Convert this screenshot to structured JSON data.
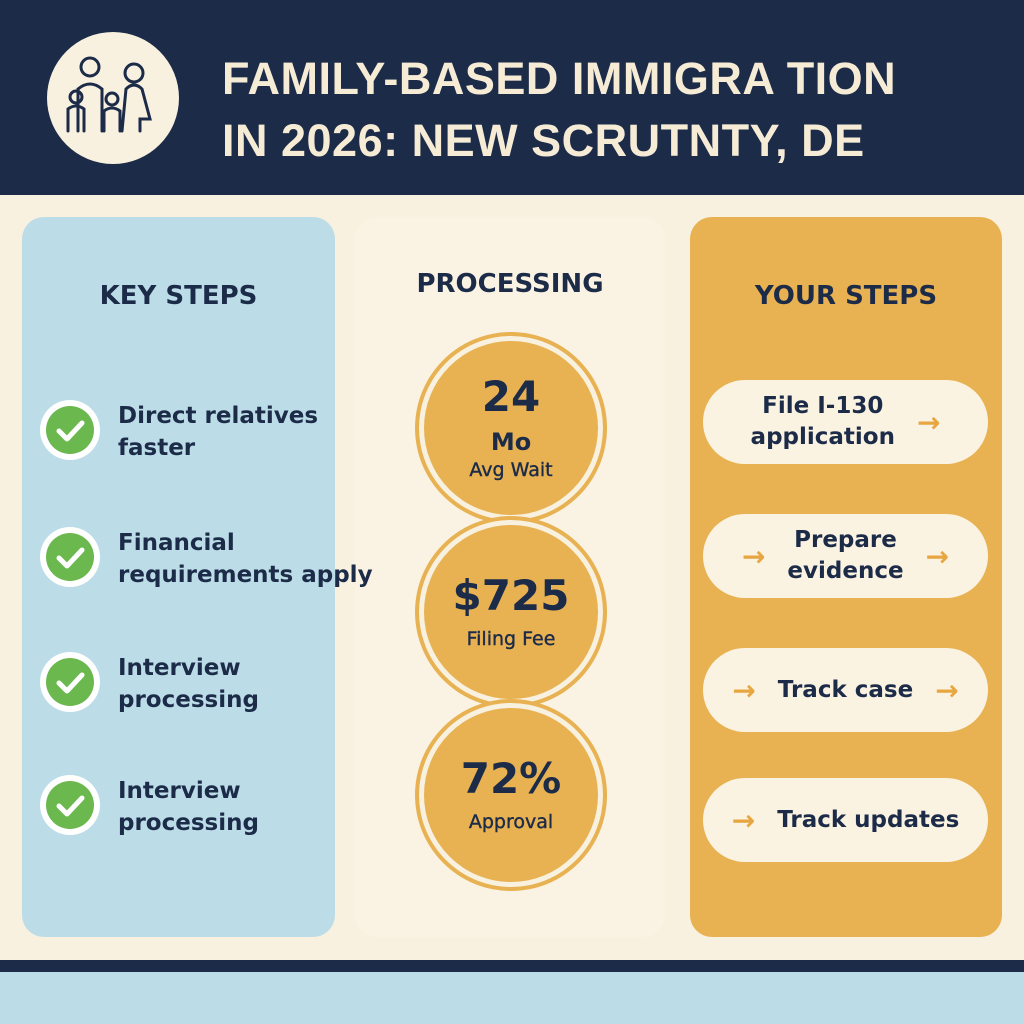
{
  "header": {
    "title_lines": [
      "FAMILY-BASED IMMIGRA TION",
      "IN 2026: NEW SCRUTNTY, DE"
    ]
  },
  "key_steps": {
    "heading": "KEY STEPS",
    "items": [
      {
        "lines": [
          "Direct relatives",
          "faster"
        ]
      },
      {
        "lines": [
          "Financial",
          "requirements apply"
        ]
      },
      {
        "lines": [
          "Interview",
          "processing"
        ]
      },
      {
        "lines": [
          "Interview",
          "processing"
        ]
      }
    ]
  },
  "processing": {
    "heading": "PROCESSING",
    "stats": [
      {
        "lines": [
          "24",
          "Mo",
          "Avg Wait"
        ]
      },
      {
        "lines": [
          "$725",
          "Filing Fee"
        ]
      },
      {
        "lines": [
          "72%",
          "Approval"
        ]
      }
    ]
  },
  "your_steps": {
    "heading": "YOUR STEPS",
    "items": [
      {
        "lines": [
          "File I-130",
          "application"
        ]
      },
      {
        "lines": [
          "Prepare",
          "evidence"
        ]
      },
      {
        "lines": [
          "Track case"
        ]
      },
      {
        "lines": [
          "Track updates"
        ]
      }
    ]
  }
}
